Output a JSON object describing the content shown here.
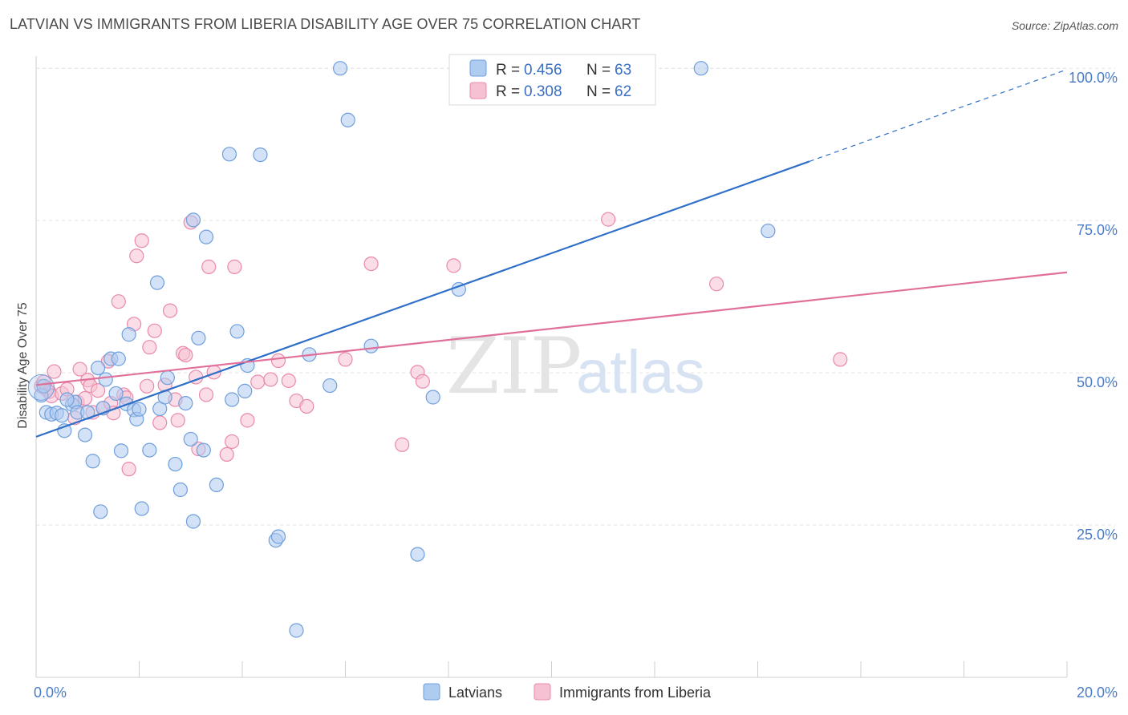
{
  "title": "LATVIAN VS IMMIGRANTS FROM LIBERIA DISABILITY AGE OVER 75 CORRELATION CHART",
  "source": "Source: ZipAtlas.com",
  "watermark": {
    "zip": "ZIP",
    "atlas": "atlas"
  },
  "colors": {
    "latvians_fill": "#aecbf0",
    "latvians_stroke": "#6f9fdc",
    "latvians_line": "#2f6fc8",
    "liberia_fill": "#f6c1d2",
    "liberia_stroke": "#e98aab",
    "liberia_line": "#e0709a",
    "grid": "#e3e3e3",
    "axis_label": "#4a7cc7"
  },
  "legend": {
    "rows": [
      {
        "r_label": "R = ",
        "r_value": "0.456",
        "n_label": "N = ",
        "n_value": "63"
      },
      {
        "r_label": "R = ",
        "r_value": "0.308",
        "n_label": "N = ",
        "n_value": "62"
      }
    ]
  },
  "chart_data": {
    "type": "scatter",
    "title": "LATVIAN VS IMMIGRANTS FROM LIBERIA DISABILITY AGE OVER 75 CORRELATION CHART",
    "xlabel": "",
    "ylabel": "Disability Age Over 75",
    "xlim": [
      0,
      20
    ],
    "ylim": [
      0,
      102
    ],
    "x_tick_labels": [
      "0.0%",
      "20.0%"
    ],
    "y_ticks": [
      25,
      50,
      75,
      100
    ],
    "y_tick_labels": [
      "25.0%",
      "50.0%",
      "75.0%",
      "100.0%"
    ],
    "grid": true,
    "legend_position": "top-center",
    "series": [
      {
        "name": "Latvians",
        "r": 0.456,
        "n": 63,
        "trend": {
          "x0": 0,
          "y0": 39.5,
          "x1": 15,
          "y1": 84.7,
          "dashed_to_x": 20,
          "dashed_to_y": 99.8
        },
        "points": [
          [
            0.1,
            46.3
          ],
          [
            0.2,
            43.5
          ],
          [
            0.3,
            43.2
          ],
          [
            0.4,
            43.4
          ],
          [
            0.5,
            43.0
          ],
          [
            0.55,
            40.5
          ],
          [
            0.7,
            44.8
          ],
          [
            0.75,
            45.2
          ],
          [
            0.8,
            43.5
          ],
          [
            0.95,
            39.8
          ],
          [
            1.0,
            43.5
          ],
          [
            1.1,
            35.5
          ],
          [
            1.2,
            50.8
          ],
          [
            1.25,
            27.2
          ],
          [
            1.35,
            48.9
          ],
          [
            1.45,
            52.3
          ],
          [
            1.55,
            46.6
          ],
          [
            1.6,
            52.3
          ],
          [
            1.65,
            37.2
          ],
          [
            1.75,
            44.9
          ],
          [
            1.8,
            56.3
          ],
          [
            1.9,
            43.9
          ],
          [
            1.95,
            42.4
          ],
          [
            2.0,
            44.0
          ],
          [
            2.05,
            27.7
          ],
          [
            2.2,
            37.3
          ],
          [
            2.35,
            64.8
          ],
          [
            2.4,
            44.1
          ],
          [
            2.5,
            46.0
          ],
          [
            2.55,
            49.2
          ],
          [
            2.7,
            35.0
          ],
          [
            2.8,
            30.8
          ],
          [
            3.0,
            39.1
          ],
          [
            3.05,
            75.1
          ],
          [
            3.05,
            25.6
          ],
          [
            3.15,
            55.7
          ],
          [
            3.25,
            37.3
          ],
          [
            3.3,
            72.3
          ],
          [
            3.5,
            31.6
          ],
          [
            3.75,
            85.9
          ],
          [
            3.8,
            45.6
          ],
          [
            3.9,
            56.8
          ],
          [
            4.05,
            47.0
          ],
          [
            4.1,
            51.2
          ],
          [
            4.35,
            85.8
          ],
          [
            4.65,
            22.5
          ],
          [
            4.7,
            23.1
          ],
          [
            5.05,
            7.7
          ],
          [
            5.3,
            53.0
          ],
          [
            5.7,
            47.9
          ],
          [
            5.9,
            100.0
          ],
          [
            6.05,
            91.5
          ],
          [
            6.5,
            54.4
          ],
          [
            7.4,
            20.2
          ],
          [
            7.7,
            46.0
          ],
          [
            8.2,
            63.7
          ],
          [
            9.1,
            100.0
          ],
          [
            12.9,
            100.0
          ],
          [
            14.2,
            73.3
          ],
          [
            0.15,
            47.8
          ],
          [
            0.6,
            45.6
          ],
          [
            1.3,
            44.2
          ],
          [
            2.9,
            45.0
          ]
        ]
      },
      {
        "name": "Immigrants from Liberia",
        "r": 0.308,
        "n": 62,
        "trend": {
          "x0": 0,
          "y0": 48.0,
          "x1": 20,
          "y1": 66.5
        },
        "points": [
          [
            0.1,
            47.8
          ],
          [
            0.2,
            47.3
          ],
          [
            0.25,
            46.9
          ],
          [
            0.3,
            46.2
          ],
          [
            0.35,
            50.2
          ],
          [
            0.5,
            46.6
          ],
          [
            0.6,
            47.3
          ],
          [
            0.75,
            42.6
          ],
          [
            0.8,
            45.2
          ],
          [
            0.85,
            50.6
          ],
          [
            0.95,
            45.8
          ],
          [
            1.0,
            48.8
          ],
          [
            1.05,
            47.9
          ],
          [
            1.1,
            43.5
          ],
          [
            1.2,
            47.1
          ],
          [
            1.3,
            44.2
          ],
          [
            1.4,
            51.9
          ],
          [
            1.45,
            45.0
          ],
          [
            1.5,
            43.4
          ],
          [
            1.6,
            61.7
          ],
          [
            1.7,
            46.4
          ],
          [
            1.75,
            45.9
          ],
          [
            1.8,
            34.2
          ],
          [
            1.9,
            58.0
          ],
          [
            1.95,
            69.2
          ],
          [
            2.05,
            71.7
          ],
          [
            2.15,
            47.8
          ],
          [
            2.2,
            54.2
          ],
          [
            2.3,
            56.9
          ],
          [
            2.4,
            41.8
          ],
          [
            2.5,
            48.0
          ],
          [
            2.6,
            60.2
          ],
          [
            2.7,
            45.6
          ],
          [
            2.75,
            42.2
          ],
          [
            2.85,
            53.2
          ],
          [
            2.9,
            52.9
          ],
          [
            3.0,
            74.7
          ],
          [
            3.1,
            49.3
          ],
          [
            3.15,
            37.5
          ],
          [
            3.3,
            46.4
          ],
          [
            3.35,
            67.4
          ],
          [
            3.45,
            50.1
          ],
          [
            3.7,
            36.6
          ],
          [
            3.8,
            38.7
          ],
          [
            3.85,
            67.4
          ],
          [
            4.1,
            42.2
          ],
          [
            4.3,
            48.5
          ],
          [
            4.55,
            48.9
          ],
          [
            4.7,
            52.0
          ],
          [
            4.9,
            48.7
          ],
          [
            5.05,
            45.4
          ],
          [
            5.25,
            44.5
          ],
          [
            6.0,
            52.2
          ],
          [
            6.5,
            67.9
          ],
          [
            7.1,
            38.2
          ],
          [
            7.4,
            50.1
          ],
          [
            7.5,
            48.6
          ],
          [
            8.1,
            67.6
          ],
          [
            11.1,
            75.2
          ],
          [
            13.2,
            64.6
          ],
          [
            15.6,
            52.2
          ],
          [
            0.15,
            48.5
          ]
        ]
      }
    ]
  }
}
